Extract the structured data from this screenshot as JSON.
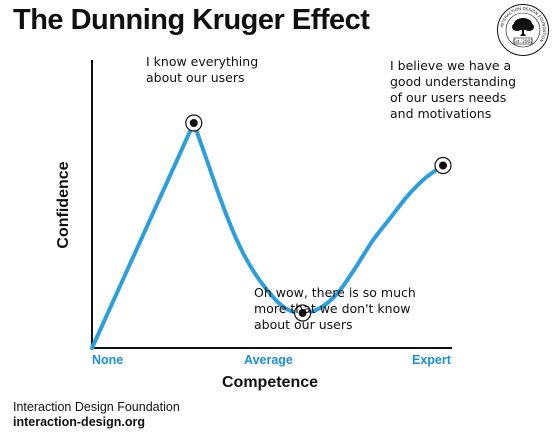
{
  "colors": {
    "curve": "#2b9fdc",
    "tick_text": "#1a8fd1",
    "axis": "#111111",
    "text": "#111111"
  },
  "logo": {
    "icon": "tree-seal-logo",
    "ring_text": "INTERACTION DESIGN FOUNDATION",
    "est": "Est. 2002"
  },
  "footer": {
    "org": "Interaction Design Foundation",
    "url": "interaction-design.org"
  },
  "chart_data": {
    "type": "line",
    "title": "The Dunning Kruger Effect",
    "xlabel": "Competence",
    "ylabel": "Confidence",
    "x_tick_labels": [
      "None",
      "Average",
      "Expert"
    ],
    "x_tick_positions": [
      0,
      0.6,
      1.0
    ],
    "xlim": [
      0,
      1
    ],
    "ylim": [
      0,
      1
    ],
    "grid": false,
    "series": [
      {
        "x": [
          0,
          0.05,
          0.1,
          0.15,
          0.2,
          0.25,
          0.29,
          0.33,
          0.37,
          0.41,
          0.45,
          0.5,
          0.55,
          0.6,
          0.65,
          0.7,
          0.75,
          0.8,
          0.85,
          0.9,
          0.95,
          1.0
        ],
        "y": [
          0,
          0.15,
          0.3,
          0.46,
          0.62,
          0.78,
          0.9,
          0.74,
          0.58,
          0.44,
          0.33,
          0.23,
          0.16,
          0.14,
          0.16,
          0.22,
          0.32,
          0.43,
          0.52,
          0.61,
          0.68,
          0.73
        ]
      }
    ],
    "points": [
      {
        "x": 0.29,
        "y": 0.9,
        "text": [
          "I know everything",
          "about our users"
        ]
      },
      {
        "x": 0.6,
        "y": 0.14,
        "text": [
          "Oh wow, there is so much",
          "more that we don't know",
          "about our users"
        ]
      },
      {
        "x": 1.0,
        "y": 0.73,
        "text": [
          "I believe we have a",
          "good understanding",
          "of our users needs",
          "and motivations"
        ]
      }
    ]
  }
}
